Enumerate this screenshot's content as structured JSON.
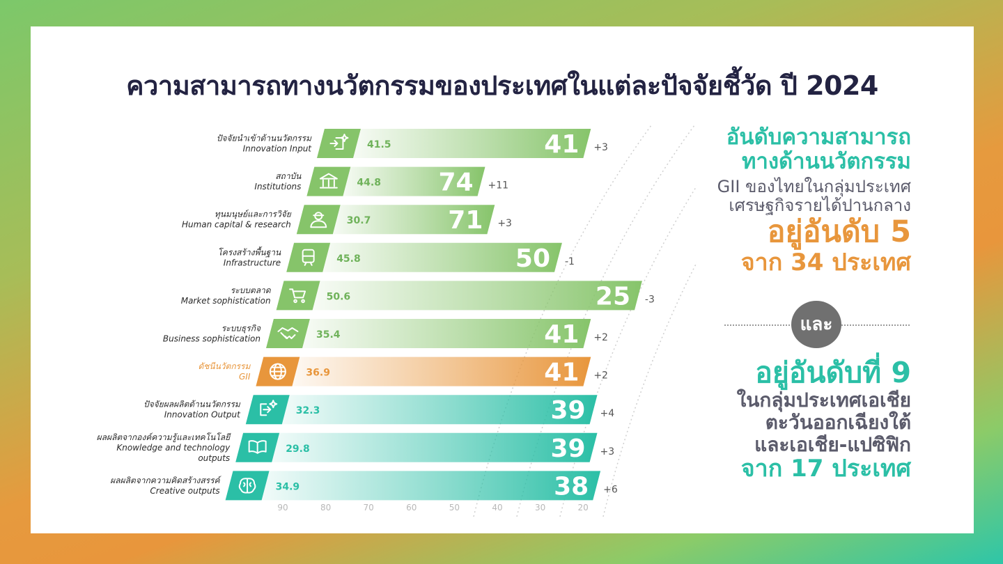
{
  "title": "ความสามารถทางนวัตกรรมของประเทศในแต่ละปัจจัยชี้วัด ปี 2024",
  "colors": {
    "green": "#86c46a",
    "orange": "#e8963c",
    "teal": "#2bbfa6",
    "navy": "#232342"
  },
  "right_panel": {
    "line1": "อันดับความสามารถ",
    "line2": "ทางด้านนวัตกรรม",
    "line3": "GII ของไทยในกลุ่มประเทศ",
    "line4": "เศรษฐกิจรายได้ปานกลาง",
    "line5": "อยู่อันดับ 5",
    "line6": "จาก 34 ประเทศ",
    "and_label": "และ",
    "line7": "อยู่อันดับที่ 9",
    "line8": "ในกลุ่มประเทศเอเชีย",
    "line9": "ตะวันออกเฉียงใต้",
    "line10": "และเอเชีย-แปซิฟิก",
    "line11": "จาก 17 ประเทศ"
  },
  "chart_data": {
    "type": "bar",
    "xlim": [
      90,
      20
    ],
    "x_ticks": [
      "90",
      "80",
      "70",
      "60",
      "50",
      "40",
      "30",
      "20"
    ],
    "categories": [
      {
        "thai": "ปัจจัยนำเข้าด้านนวัตกรรม",
        "en": [
          "Innovation Input"
        ],
        "score": 41.5,
        "rank": "41",
        "change": "+3",
        "group": "green",
        "icon": "sparkle-input-icon"
      },
      {
        "thai": "สถาบัน",
        "en": [
          "Institutions"
        ],
        "score": 44.8,
        "rank": "74",
        "change": "+11",
        "group": "green",
        "icon": "institution-icon"
      },
      {
        "thai": "ทุนมนุษย์และการวิจัย",
        "en": [
          "Human capital & research"
        ],
        "score": 30.7,
        "rank": "71",
        "change": "+3",
        "group": "green",
        "icon": "researcher-icon"
      },
      {
        "thai": "โครงสร้างพื้นฐาน",
        "en": [
          "Infrastructure"
        ],
        "score": 45.8,
        "rank": "50",
        "change": "-1",
        "group": "green",
        "icon": "train-icon"
      },
      {
        "thai": "ระบบตลาด",
        "en": [
          "Market sophistication"
        ],
        "score": 50.6,
        "rank": "25",
        "change": "-3",
        "group": "green",
        "icon": "cart-icon"
      },
      {
        "thai": "ระบบธุรกิจ",
        "en": [
          "Business sophistication"
        ],
        "score": 35.4,
        "rank": "41",
        "change": "+2",
        "group": "green",
        "icon": "handshake-icon"
      },
      {
        "thai": "ดัชนีนวัตกรรม",
        "en": [
          "GII"
        ],
        "score": 36.9,
        "rank": "41",
        "change": "+2",
        "group": "orange",
        "icon": "globe-icon"
      },
      {
        "thai": "ปัจจัยผลผลิตด้านนวัตกรรม",
        "en": [
          "Innovation Output"
        ],
        "score": 32.3,
        "rank": "39",
        "change": "+4",
        "group": "teal",
        "icon": "sparkle-output-icon"
      },
      {
        "thai": "ผลผลิตจากองค์ความรู้และเทคโนโลยี",
        "en": [
          "Knowledge and technology",
          "outputs"
        ],
        "score": 29.8,
        "rank": "39",
        "change": "+3",
        "group": "teal",
        "icon": "book-icon"
      },
      {
        "thai": "ผลผลิตจากความคิดสร้างสรรค์",
        "en": [
          "Creative outputs"
        ],
        "score": 34.9,
        "rank": "38",
        "change": "+6",
        "group": "teal",
        "icon": "brain-icon"
      }
    ]
  }
}
